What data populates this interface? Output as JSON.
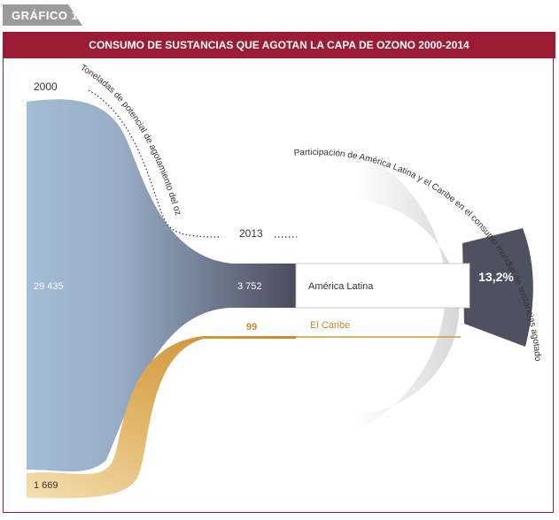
{
  "figure_tag": "GRÁFICO 1",
  "chart_data": {
    "type": "sankey",
    "title": "CONSUMO DE SUSTANCIAS QUE AGOTAN LA CAPA DE OZONO 2000-2014",
    "unit_label": "Toneladas de potencial de agotamiento del ozono (PAO)",
    "start_year": "2000",
    "end_year": "2013",
    "flows": [
      {
        "name": "América Latina",
        "start_value_label": "29 435",
        "start_value": 29435,
        "end_value_label": "3 752",
        "end_value": 3752,
        "color": "#4f5161"
      },
      {
        "name": "El Caribe",
        "start_value_label": "1 669",
        "start_value": 1669,
        "end_value_label": "99",
        "end_value": 99,
        "color": "#d49a3f"
      }
    ],
    "share_label": "Participación de América Latina y el Caribe en el consumo mundial de sustancias agotadoras de la capa de ozono (SAO)",
    "share_value": 13.2,
    "share_value_label": "13,2%"
  }
}
